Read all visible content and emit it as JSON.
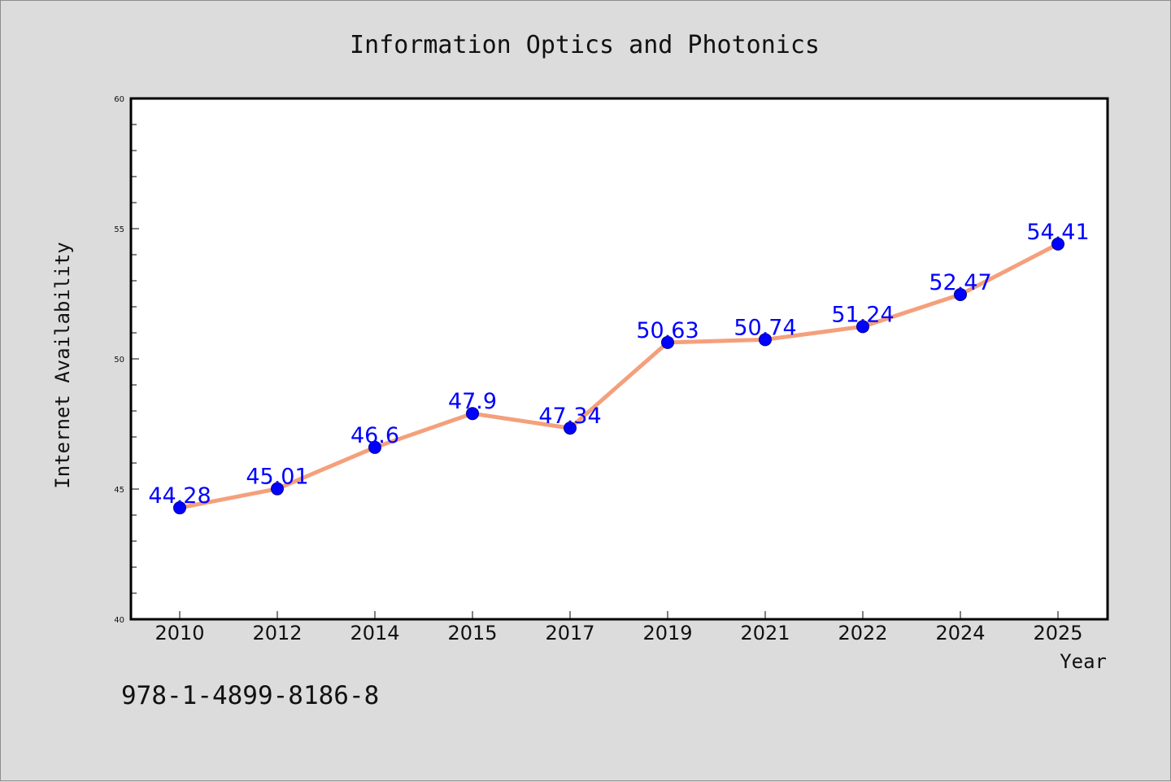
{
  "chart_data": {
    "type": "line",
    "title": "Information Optics and Photonics",
    "xlabel": "Year",
    "ylabel": "Internet Availability",
    "categories": [
      "2010",
      "2012",
      "2014",
      "2015",
      "2017",
      "2019",
      "2021",
      "2022",
      "2024",
      "2025"
    ],
    "series": [
      {
        "values": [
          44.28,
          45.01,
          46.6,
          47.9,
          47.34,
          50.63,
          50.74,
          51.24,
          52.47,
          54.41
        ],
        "data_labels": [
          "44.28",
          "45.01",
          "46.6",
          "47.9",
          "47.34",
          "50.63",
          "50.74",
          "51.24",
          "52.47",
          "54.41"
        ]
      }
    ],
    "ylim": [
      40,
      60
    ],
    "yticks": [
      40,
      45,
      50,
      55,
      60
    ],
    "ytick_labels": [
      "40",
      "45",
      "50",
      "55",
      "60"
    ],
    "grid": false,
    "line_color": "#f4a07c",
    "marker_color": "#0000ff",
    "label_color": "#0000ff"
  },
  "footer": {
    "isbn": "978-1-4899-8186-8"
  }
}
